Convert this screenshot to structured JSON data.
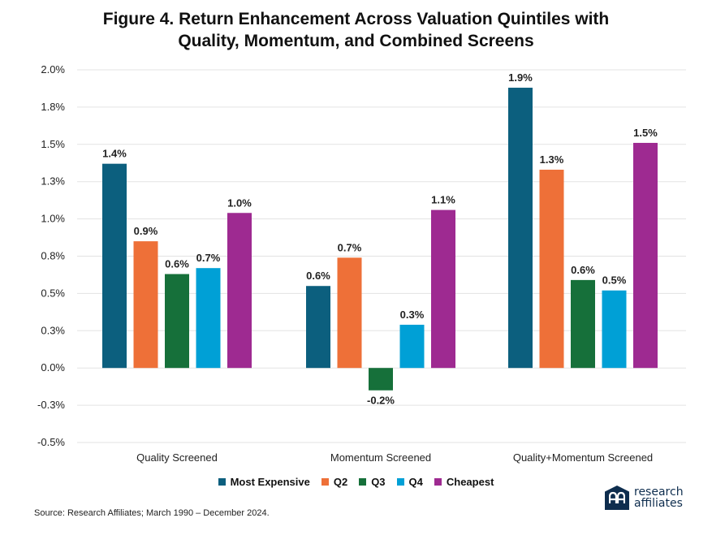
{
  "title_line1": "Figure 4. Return Enhancement Across Valuation Quintiles with",
  "title_line2": "Quality, Momentum, and Combined Screens",
  "source": "Source: Research Affiliates; March 1990 – December 2024.",
  "logo": {
    "line1": "research",
    "line2": "affiliates",
    "icon": "ra-logo-icon",
    "color": "#0e2d4e"
  },
  "chart_data": {
    "type": "bar",
    "categories": [
      "Quality Screened",
      "Momentum Screened",
      "Quality+Momentum Screened"
    ],
    "series": [
      {
        "name": "Most Expensive",
        "color": "#0c5f7e",
        "values": [
          1.37,
          0.55,
          1.88
        ],
        "labels": [
          "1.4%",
          "0.6%",
          "1.9%"
        ]
      },
      {
        "name": "Q2",
        "color": "#ee7038",
        "values": [
          0.85,
          0.74,
          1.33
        ],
        "labels": [
          "0.9%",
          "0.7%",
          "1.3%"
        ]
      },
      {
        "name": "Q3",
        "color": "#16703a",
        "values": [
          0.63,
          -0.15,
          0.59
        ],
        "labels": [
          "0.6%",
          "-0.2%",
          "0.6%"
        ]
      },
      {
        "name": "Q4",
        "color": "#00a0d6",
        "values": [
          0.67,
          0.29,
          0.52
        ],
        "labels": [
          "0.7%",
          "0.3%",
          "0.5%"
        ]
      },
      {
        "name": "Cheapest",
        "color": "#9e2a91",
        "values": [
          1.04,
          1.06,
          1.51
        ],
        "labels": [
          "1.0%",
          "1.1%",
          "1.5%"
        ]
      }
    ],
    "yticks": [
      2.0,
      1.75,
      1.5,
      1.25,
      1.0,
      0.75,
      0.5,
      0.25,
      0.0,
      -0.25,
      -0.5
    ],
    "ytick_labels": [
      "2.0%",
      "1.8%",
      "1.5%",
      "1.3%",
      "1.0%",
      "0.8%",
      "0.5%",
      "0.3%",
      "0.0%",
      "-0.3%",
      "-0.5%"
    ],
    "ylim": [
      -0.5,
      2.0
    ],
    "grid": true,
    "legend_position": "bottom"
  }
}
